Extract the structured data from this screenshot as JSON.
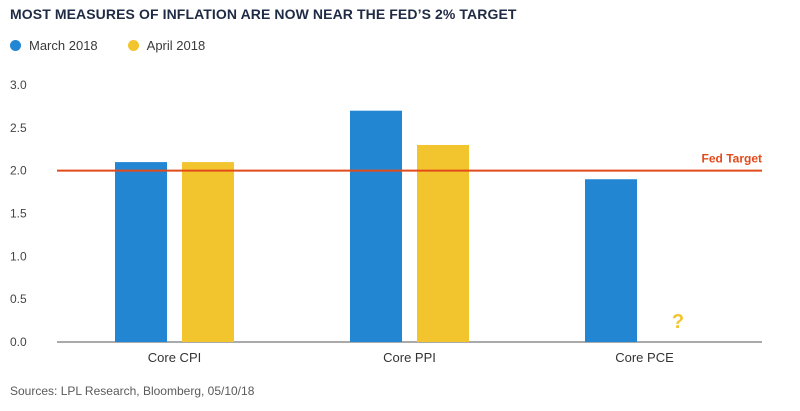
{
  "chart_data": {
    "type": "bar",
    "title": "MOST MEASURES OF INFLATION ARE NOW NEAR THE FED’S 2% TARGET",
    "categories": [
      "Core CPI",
      "Core PPI",
      "Core PCE"
    ],
    "series": [
      {
        "name": "March 2018",
        "color": "#2386d3",
        "values": [
          2.1,
          2.7,
          1.9
        ]
      },
      {
        "name": "April 2018",
        "color": "#f2c52e",
        "values": [
          2.1,
          2.3,
          null
        ]
      }
    ],
    "ylim": [
      0.0,
      3.0
    ],
    "yticks": [
      "0.0",
      "0.5",
      "1.0",
      "1.5",
      "2.0",
      "2.5",
      "3.0"
    ],
    "reference_line": {
      "value": 2.0,
      "label": "Fed Target",
      "color": "#e34a1a"
    },
    "missing_marker": "?",
    "source": "Sources: LPL Research, Bloomberg, 05/10/18"
  }
}
